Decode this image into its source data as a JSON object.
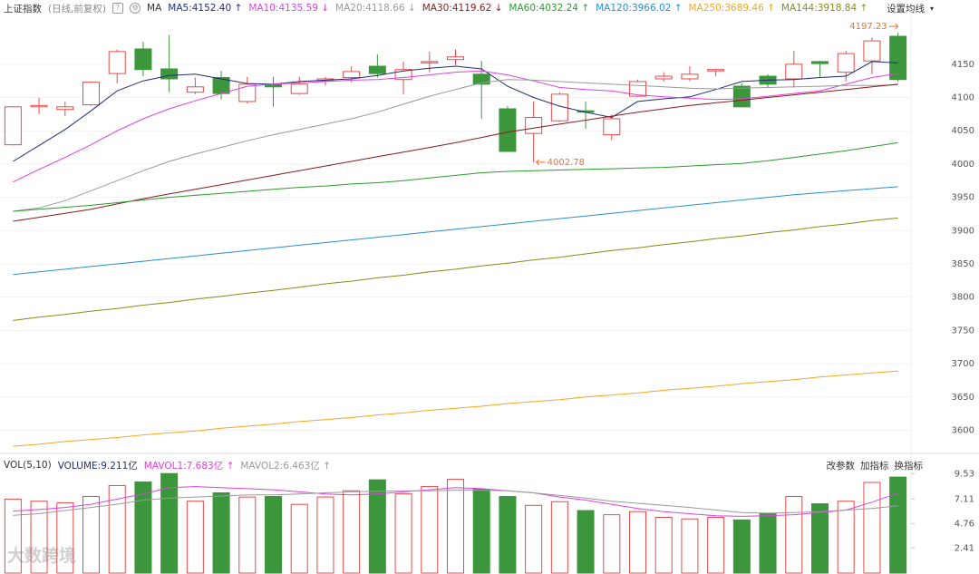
{
  "chart_data": [
    {
      "type": "candlestick",
      "title": "上证指数",
      "subtitle": "(日线,前复权)",
      "indicator": "MA",
      "settings_label": "设置均线",
      "ylim": [
        3572,
        4222
      ],
      "yticks": [
        3600,
        3650,
        3700,
        3750,
        3800,
        3850,
        3900,
        3950,
        4000,
        4050,
        4100,
        4150
      ],
      "grid": true,
      "up_color": "#e84a4a",
      "down_color": "#3c963c",
      "candles": {
        "open": [
          4029,
          4086,
          4082,
          4089,
          4136,
          4173,
          4143,
          4108,
          4130,
          4094,
          4120,
          4106,
          4125,
          4130,
          4147,
          4127,
          4152,
          4157,
          4135,
          4083,
          4046,
          4065,
          4080,
          4044,
          4102,
          4128,
          4128,
          4140,
          4117,
          4132,
          4128,
          4154,
          4138,
          4155,
          4192
        ],
        "high": [
          4087,
          4100,
          4094,
          4124,
          4172,
          4184,
          4194,
          4130,
          4140,
          4131,
          4131,
          4131,
          4131,
          4147,
          4165,
          4154,
          4169,
          4172,
          4155,
          4087,
          4094,
          4108,
          4094,
          4074,
          4127,
          4138,
          4147,
          4143,
          4121,
          4135,
          4170,
          4155,
          4170,
          4190,
          4197.23
        ],
        "low": [
          4028,
          4075,
          4072,
          4088,
          4121,
          4132,
          4108,
          4105,
          4097,
          4091,
          4086,
          4104,
          4118,
          4123,
          4130,
          4105,
          4138,
          4149,
          4068,
          4019,
          4002.78,
          4063,
          4053,
          4036,
          4101,
          4124,
          4125,
          4132,
          4085,
          4115,
          4115,
          4131,
          4124,
          4135,
          4124
        ],
        "close": [
          4086,
          4088,
          4086,
          4123,
          4169,
          4142,
          4128,
          4116,
          4106,
          4120,
          4116,
          4120,
          4128,
          4139,
          4136,
          4142,
          4154,
          4161,
          4120,
          4019,
          4070,
          4105,
          4078,
          4068,
          4124,
          4132,
          4135,
          4142,
          4086,
          4120,
          4150,
          4151,
          4166,
          4185,
          4127
        ]
      },
      "series": [
        {
          "name": "MA5:4152.40 ↑",
          "color": "#1f2d7a",
          "values": [
            4004,
            4028,
            4052,
            4080,
            4110,
            4125,
            4133,
            4135,
            4128,
            4121,
            4120,
            4124,
            4126,
            4128,
            4133,
            4140,
            4144,
            4147,
            4143,
            4117,
            4100,
            4087,
            4078,
            4070,
            4094,
            4098,
            4101,
            4112,
            4124,
            4126,
            4127,
            4130,
            4132,
            4154,
            4152
          ]
        },
        {
          "name": "MA10:4135.59 ↓",
          "color": "#e040e0",
          "values": [
            3973,
            3992,
            4010,
            4029,
            4050,
            4068,
            4083,
            4095,
            4106,
            4117,
            4120,
            4122,
            4124,
            4126,
            4127,
            4130,
            4134,
            4138,
            4140,
            4134,
            4125,
            4115,
            4112,
            4110,
            4104,
            4101,
            4099,
            4097,
            4098,
            4102,
            4106,
            4110,
            4120,
            4130,
            4136
          ]
        },
        {
          "name": "MA20:4118.66 ↓",
          "color": "#9a9a9a",
          "values": [
            3929,
            3934,
            3945,
            3960,
            3975,
            3990,
            4004,
            4015,
            4025,
            4035,
            4044,
            4052,
            4060,
            4068,
            4078,
            4090,
            4102,
            4112,
            4122,
            4127,
            4126,
            4124,
            4122,
            4120,
            4118,
            4116,
            4114,
            4113,
            4114,
            4115,
            4116,
            4117,
            4118,
            4118,
            4119
          ]
        },
        {
          "name": "MA30:4119.62 ↓",
          "color": "#8b1a1a",
          "values": [
            3914,
            3920,
            3926,
            3932,
            3940,
            3948,
            3955,
            3962,
            3969,
            3976,
            3983,
            3990,
            3997,
            4004,
            4011,
            4018,
            4025,
            4032,
            4040,
            4048,
            4054,
            4060,
            4066,
            4072,
            4078,
            4083,
            4088,
            4092,
            4096,
            4100,
            4104,
            4108,
            4112,
            4116,
            4120
          ]
        },
        {
          "name": "MA60:4032.24 ↑",
          "color": "#2e9a2e",
          "values": [
            3929,
            3932,
            3935,
            3938,
            3942,
            3946,
            3950,
            3953,
            3956,
            3959,
            3962,
            3965,
            3967,
            3970,
            3972,
            3975,
            3979,
            3983,
            3987,
            3989,
            3990,
            3991,
            3992,
            3993,
            3994,
            3995,
            3997,
            3999,
            4001,
            4005,
            4010,
            4015,
            4020,
            4026,
            4032
          ]
        },
        {
          "name": "MA120:3966.02 ↑",
          "color": "#2a8fd0",
          "values": [
            3834,
            3838,
            3842,
            3846,
            3850,
            3854,
            3858,
            3862,
            3866,
            3870,
            3874,
            3878,
            3882,
            3886,
            3890,
            3894,
            3898,
            3902,
            3906,
            3910,
            3914,
            3918,
            3922,
            3926,
            3930,
            3934,
            3938,
            3942,
            3946,
            3950,
            3954,
            3957,
            3960,
            3963,
            3966
          ]
        },
        {
          "name": "MA250:3689.46 ↑",
          "color": "#f5a623",
          "values": [
            3576,
            3579,
            3583,
            3586,
            3589,
            3593,
            3596,
            3599,
            3603,
            3606,
            3609,
            3613,
            3616,
            3619,
            3623,
            3626,
            3630,
            3633,
            3636,
            3640,
            3643,
            3646,
            3650,
            3653,
            3656,
            3660,
            3663,
            3666,
            3670,
            3673,
            3676,
            3680,
            3683,
            3686,
            3689
          ]
        },
        {
          "name": "MA144:3918.84 ↑",
          "color": "#8a8a1a",
          "values": [
            3765,
            3770,
            3774,
            3779,
            3783,
            3788,
            3792,
            3797,
            3801,
            3806,
            3810,
            3815,
            3820,
            3824,
            3829,
            3833,
            3838,
            3842,
            3847,
            3851,
            3856,
            3860,
            3865,
            3870,
            3874,
            3879,
            3883,
            3888,
            3892,
            3897,
            3901,
            3906,
            3910,
            3915,
            3919
          ]
        }
      ]
    },
    {
      "type": "bar",
      "title": "VOL(5,10)",
      "buttons": [
        "改参数",
        "加指标",
        "换指标"
      ],
      "watermark": "大数跨境",
      "ylim": [
        0,
        11.05
      ],
      "yticks": [
        2.41,
        4.76,
        7.11,
        9.53
      ],
      "series": [
        {
          "name": "VOLUME:9.211亿",
          "color": "#1f2d7a",
          "values": [
            7.1,
            6.9,
            6.75,
            7.35,
            8.4,
            8.75,
            9.55,
            6.9,
            7.7,
            7.3,
            7.35,
            6.6,
            7.3,
            7.9,
            8.95,
            7.6,
            8.3,
            9.0,
            8.05,
            7.35,
            6.5,
            6.85,
            6.0,
            5.6,
            5.9,
            5.35,
            5.2,
            5.35,
            5.1,
            5.7,
            7.35,
            6.65,
            6.9,
            8.7,
            9.211
          ]
        },
        {
          "name": "MAVOL1:7.683亿 ↑",
          "color": "#e040e0",
          "values": [
            5.95,
            6.1,
            6.3,
            6.6,
            7.1,
            7.6,
            8.2,
            8.3,
            8.2,
            8.1,
            8.0,
            7.8,
            7.6,
            7.5,
            7.6,
            7.8,
            8.0,
            8.2,
            8.1,
            7.9,
            7.7,
            7.3,
            7.0,
            6.6,
            6.2,
            5.9,
            5.7,
            5.5,
            5.45,
            5.5,
            5.6,
            5.8,
            6.05,
            6.8,
            7.683
          ]
        },
        {
          "name": "MAVOL2:6.463亿 ↑",
          "color": "#9a9a9a",
          "values": [
            5.55,
            5.7,
            6.0,
            6.3,
            6.6,
            7.0,
            7.2,
            7.3,
            7.4,
            7.5,
            7.5,
            7.6,
            7.7,
            7.8,
            7.85,
            7.9,
            7.9,
            7.95,
            7.95,
            7.9,
            7.7,
            7.45,
            7.2,
            6.9,
            6.7,
            6.5,
            6.3,
            6.05,
            5.8,
            5.75,
            5.8,
            5.9,
            6.05,
            6.2,
            6.463
          ]
        }
      ]
    }
  ]
}
